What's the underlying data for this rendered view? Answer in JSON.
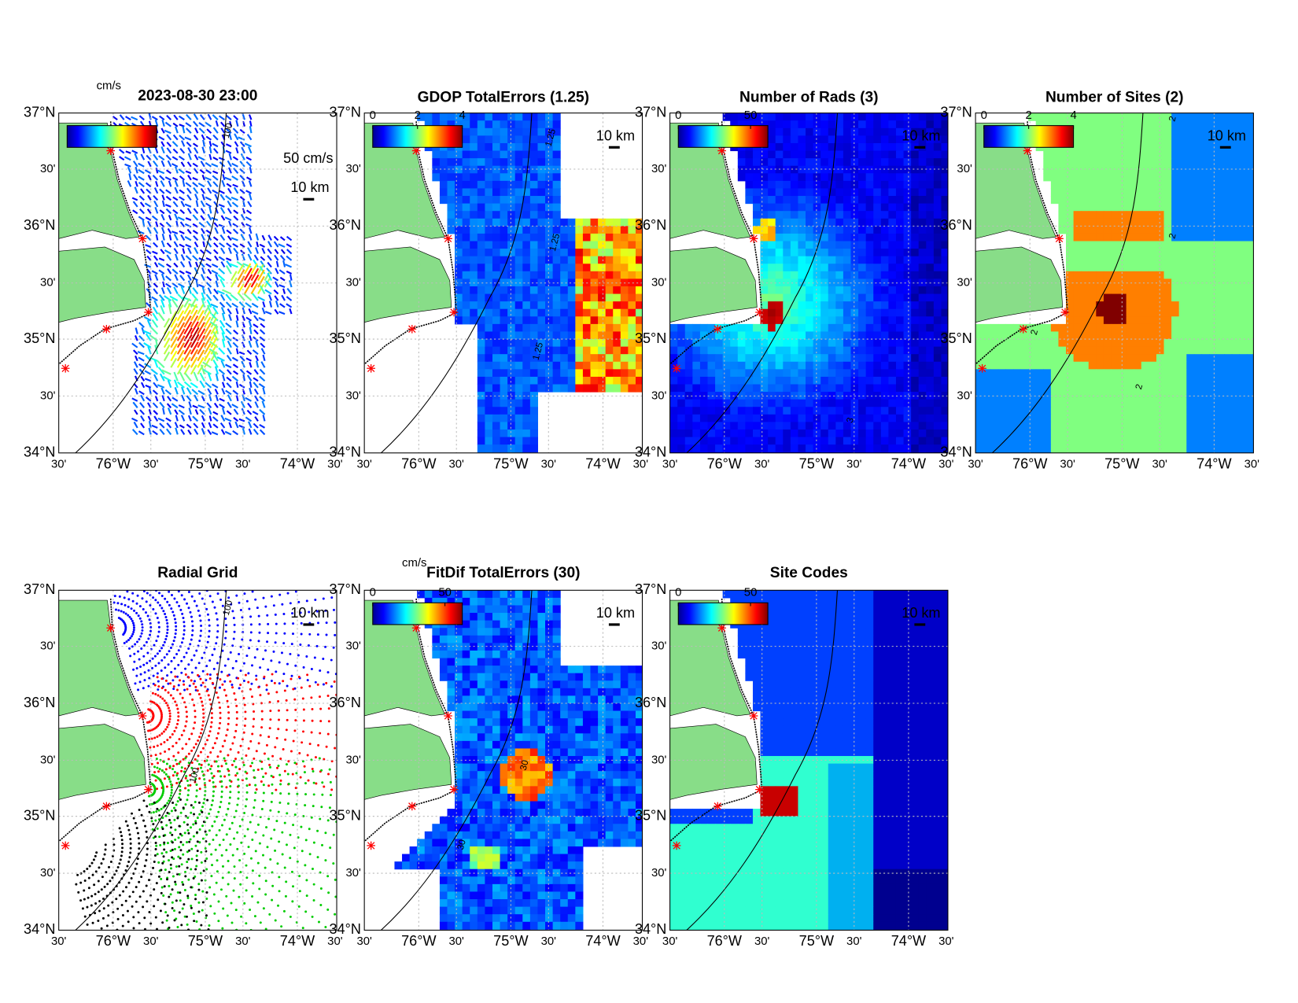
{
  "lat_labels": [
    "37°N",
    "30'",
    "36°N",
    "30'",
    "35°N",
    "30'",
    "34°N"
  ],
  "lon_labels": [
    "30'",
    "76°W",
    "30'",
    "75°W",
    "30'",
    "74°W",
    "30'"
  ],
  "panels": [
    {
      "title": "2023-08-30 23:00",
      "colorbar_unit": "cm/s",
      "vector_scale_label": "50 cm/s",
      "scale_label": "10 km",
      "contour_labels": [
        "100"
      ]
    },
    {
      "title": "GDOP TotalErrors (1.25)",
      "colorbar_ticks": [
        0,
        2,
        4
      ],
      "colorbar_lim": [
        0,
        4
      ],
      "scale_label": "10 km",
      "contour_labels": [
        "1.25",
        "1.25",
        "1.25"
      ]
    },
    {
      "title": "Number of Rads (3)",
      "colorbar_ticks": [
        0,
        50
      ],
      "colorbar_lim": [
        0,
        62
      ],
      "scale_label": "10 km",
      "contour_labels": [
        "3"
      ]
    },
    {
      "title": "Number of Sites (2)",
      "colorbar_ticks": [
        0,
        2,
        4
      ],
      "colorbar_lim": [
        0,
        4
      ],
      "scale_label": "10 km",
      "contour_labels": [
        "2",
        "2",
        "2",
        "2"
      ]
    },
    {
      "title": "Radial Grid",
      "scale_label": "10 km",
      "contour_labels": [
        "100",
        "100"
      ]
    },
    {
      "title": "FitDif TotalErrors (30)",
      "colorbar_unit": "cm/s",
      "colorbar_ticks": [
        0,
        50
      ],
      "colorbar_lim": [
        0,
        62
      ],
      "scale_label": "10 km",
      "contour_labels": [
        "30",
        "30"
      ]
    },
    {
      "title": "Site Codes",
      "colorbar_ticks": [
        0,
        50
      ],
      "colorbar_lim": [
        0,
        62
      ],
      "scale_label": "10 km"
    }
  ]
}
